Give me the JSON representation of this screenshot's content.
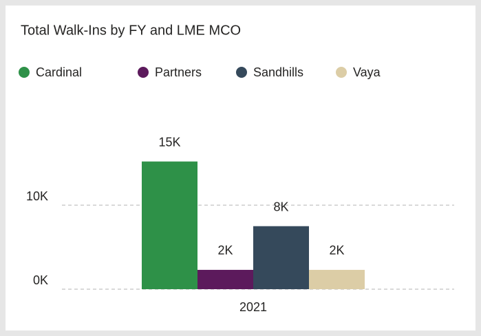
{
  "chart_data": {
    "type": "bar",
    "title": "Total Walk-Ins by FY and LME MCO",
    "categories": [
      "2021"
    ],
    "series": [
      {
        "name": "Cardinal",
        "color": "#2e9148",
        "values": [
          15200
        ],
        "value_labels": [
          "15K"
        ]
      },
      {
        "name": "Partners",
        "color": "#5c1a5c",
        "values": [
          2300
        ],
        "value_labels": [
          "2K"
        ]
      },
      {
        "name": "Sandhills",
        "color": "#35495b",
        "values": [
          7500
        ],
        "value_labels": [
          "8K"
        ]
      },
      {
        "name": "Vaya",
        "color": "#dccda6",
        "values": [
          2300
        ],
        "value_labels": [
          "2K"
        ]
      }
    ],
    "ylim": [
      0,
      20000
    ],
    "yticks": [
      {
        "value": 0,
        "label": "0K"
      },
      {
        "value": 10000,
        "label": "10K"
      }
    ],
    "grid": true,
    "legend": "top-left"
  }
}
